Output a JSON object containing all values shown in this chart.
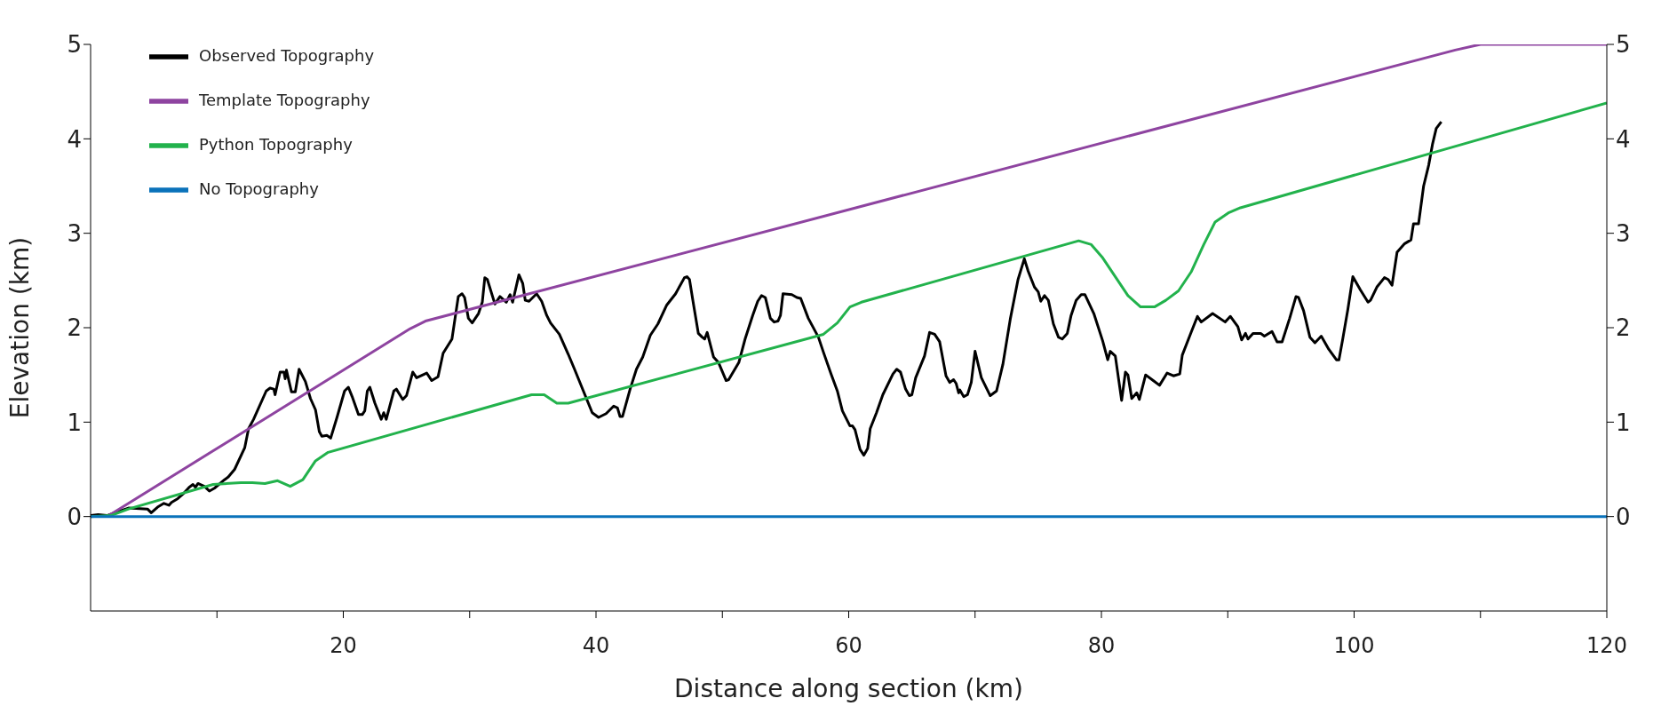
{
  "chart_data": {
    "type": "line",
    "xlabel": "Distance along section (km)",
    "ylabel": "Elevation (km)",
    "xlim": [
      0,
      120
    ],
    "xticks": [
      {
        "value": 10,
        "label": null
      },
      20,
      {
        "value": 30,
        "label": null
      },
      40,
      {
        "value": 50,
        "label": null
      },
      60,
      {
        "value": 70,
        "label": null
      },
      80,
      {
        "value": 90,
        "label": null
      },
      100,
      {
        "value": 110,
        "label": null
      },
      120
    ],
    "ylim": [
      -1,
      5
    ],
    "yticks": [
      0,
      1,
      2,
      3,
      4,
      5
    ],
    "y2lim": [
      -1,
      5
    ],
    "y2ticks": [
      0,
      1,
      2,
      3,
      4,
      5
    ],
    "legend": "top left",
    "series": [
      {
        "name": "Observed Topography",
        "color": "#000000",
        "x": [
          0,
          0.6,
          1.3,
          1.9,
          3.0,
          4.5,
          4.8,
          5.3,
          5.8,
          6.2,
          6.4,
          6.9,
          7.4,
          7.8,
          8.1,
          8.3,
          8.5,
          9.0,
          9.4,
          9.8,
          10.6,
          10.9,
          11.4,
          12.2,
          12.5,
          12.9,
          13.9,
          14.2,
          14.5,
          14.6,
          15.0,
          15.3,
          15.4,
          15.5,
          15.9,
          16.2,
          16.5,
          17.0,
          17.4,
          17.8,
          18.1,
          18.3,
          18.7,
          19.0,
          19.5,
          20.1,
          20.4,
          20.7,
          21.2,
          21.5,
          21.7,
          21.9,
          22.1,
          22.5,
          23.0,
          23.2,
          23.4,
          24.0,
          24.2,
          24.7,
          25.0,
          25.5,
          25.8,
          26.6,
          27.0,
          27.5,
          27.9,
          28.6,
          29.1,
          29.4,
          29.6,
          29.9,
          30.2,
          30.7,
          31.0,
          31.2,
          31.4,
          32.0,
          32.4,
          32.9,
          33.2,
          33.4,
          33.9,
          34.2,
          34.4,
          34.7,
          35.3,
          35.7,
          36.1,
          36.4,
          37.1,
          37.8,
          38.3,
          39.0,
          39.7,
          40.2,
          40.8,
          41.4,
          41.7,
          41.9,
          42.1,
          42.7,
          43.2,
          43.7,
          44.3,
          44.9,
          45.6,
          46.3,
          47.0,
          47.2,
          47.4,
          47.7,
          48.1,
          48.4,
          48.6,
          48.8,
          49.3,
          49.7,
          50.3,
          50.5,
          51.3,
          51.8,
          52.4,
          52.8,
          53.1,
          53.4,
          53.8,
          54.1,
          54.4,
          54.6,
          54.8,
          55.5,
          55.9,
          56.2,
          56.8,
          57.6,
          58.0,
          58.6,
          59.1,
          59.5,
          60.1,
          60.3,
          60.5,
          60.9,
          61.2,
          61.5,
          61.7,
          62.2,
          62.7,
          63.5,
          63.8,
          64.1,
          64.5,
          64.8,
          65.0,
          65.3,
          66.0,
          66.4,
          66.8,
          67.2,
          67.7,
          68.0,
          68.3,
          68.5,
          68.7,
          68.8,
          69.1,
          69.4,
          69.7,
          70.0,
          70.5,
          71.2,
          71.7,
          72.2,
          72.8,
          73.4,
          73.9,
          74.2,
          74.7,
          75.0,
          75.2,
          75.5,
          75.8,
          76.2,
          76.6,
          76.9,
          77.3,
          77.6,
          78.0,
          78.4,
          78.7,
          79.4,
          80.1,
          80.5,
          80.7,
          81.1,
          81.6,
          81.9,
          82.1,
          82.4,
          82.8,
          83.0,
          83.5,
          84.1,
          84.6,
          85.2,
          85.7,
          86.2,
          86.4,
          87.1,
          87.6,
          87.9,
          88.8,
          89.8,
          90.2,
          90.8,
          91.1,
          91.4,
          91.6,
          92.0,
          92.6,
          92.9,
          93.5,
          93.9,
          94.3,
          94.9,
          95.4,
          95.6,
          96.0,
          96.5,
          96.9,
          97.4,
          98.0,
          98.6,
          98.8,
          99.1,
          99.5,
          99.9,
          100.5,
          101.1,
          101.3,
          101.8,
          102.4,
          102.7,
          103.0,
          103.4,
          104.0,
          104.5,
          104.7,
          105.1,
          105.5,
          105.9,
          106.2,
          106.5,
          106.9
        ],
        "values": [
          0.01,
          0.02,
          0.01,
          0.04,
          0.09,
          0.08,
          0.04,
          0.1,
          0.14,
          0.12,
          0.15,
          0.19,
          0.25,
          0.31,
          0.34,
          0.31,
          0.35,
          0.32,
          0.27,
          0.3,
          0.39,
          0.42,
          0.5,
          0.73,
          0.93,
          1.03,
          1.33,
          1.36,
          1.35,
          1.29,
          1.53,
          1.53,
          1.46,
          1.55,
          1.32,
          1.32,
          1.56,
          1.43,
          1.25,
          1.13,
          0.9,
          0.85,
          0.86,
          0.83,
          1.05,
          1.33,
          1.37,
          1.27,
          1.08,
          1.08,
          1.12,
          1.33,
          1.37,
          1.2,
          1.03,
          1.1,
          1.03,
          1.33,
          1.35,
          1.24,
          1.28,
          1.53,
          1.47,
          1.52,
          1.44,
          1.48,
          1.73,
          1.88,
          2.33,
          2.36,
          2.32,
          2.1,
          2.05,
          2.15,
          2.27,
          2.53,
          2.51,
          2.25,
          2.33,
          2.27,
          2.35,
          2.27,
          2.56,
          2.47,
          2.29,
          2.28,
          2.36,
          2.28,
          2.13,
          2.05,
          1.93,
          1.72,
          1.56,
          1.33,
          1.1,
          1.05,
          1.09,
          1.17,
          1.15,
          1.06,
          1.06,
          1.35,
          1.56,
          1.69,
          1.92,
          2.04,
          2.24,
          2.36,
          2.53,
          2.54,
          2.51,
          2.26,
          1.94,
          1.9,
          1.88,
          1.95,
          1.69,
          1.63,
          1.44,
          1.45,
          1.63,
          1.88,
          2.13,
          2.28,
          2.34,
          2.32,
          2.1,
          2.06,
          2.07,
          2.13,
          2.36,
          2.35,
          2.32,
          2.31,
          2.1,
          1.9,
          1.74,
          1.51,
          1.33,
          1.12,
          0.96,
          0.96,
          0.92,
          0.71,
          0.65,
          0.72,
          0.93,
          1.1,
          1.29,
          1.51,
          1.56,
          1.53,
          1.35,
          1.28,
          1.29,
          1.47,
          1.7,
          1.95,
          1.93,
          1.85,
          1.49,
          1.42,
          1.45,
          1.41,
          1.31,
          1.34,
          1.27,
          1.29,
          1.42,
          1.75,
          1.47,
          1.28,
          1.33,
          1.61,
          2.1,
          2.51,
          2.73,
          2.6,
          2.43,
          2.38,
          2.28,
          2.34,
          2.29,
          2.04,
          1.9,
          1.88,
          1.94,
          2.13,
          2.29,
          2.35,
          2.35,
          2.15,
          1.86,
          1.66,
          1.75,
          1.7,
          1.23,
          1.53,
          1.5,
          1.25,
          1.31,
          1.24,
          1.5,
          1.44,
          1.39,
          1.52,
          1.49,
          1.51,
          1.71,
          1.95,
          2.12,
          2.06,
          2.15,
          2.06,
          2.12,
          2.01,
          1.87,
          1.94,
          1.88,
          1.94,
          1.94,
          1.91,
          1.96,
          1.85,
          1.85,
          2.1,
          2.33,
          2.32,
          2.18,
          1.9,
          1.84,
          1.91,
          1.77,
          1.66,
          1.66,
          1.88,
          2.19,
          2.54,
          2.4,
          2.27,
          2.29,
          2.43,
          2.53,
          2.51,
          2.45,
          2.8,
          2.89,
          2.93,
          3.1,
          3.1,
          3.5,
          3.72,
          3.94,
          4.11,
          4.18
        ]
      },
      {
        "name": "Template Topography",
        "color": "#8e44a0",
        "x": [
          1.3,
          25.3,
          26.5,
          108,
          110,
          120
        ],
        "values": [
          0,
          1.99,
          2.07,
          4.94,
          5.0,
          5.0
        ]
      },
      {
        "name": "Python Topography",
        "color": "#22b24c",
        "x": [
          0,
          1.6,
          3.0,
          9.7,
          11.9,
          12.8,
          13.8,
          14.8,
          15.8,
          16.8,
          17.8,
          18.8,
          34.9,
          35.9,
          36.9,
          37.8,
          58.0,
          59.1,
          60.1,
          61.0,
          78.2,
          79.2,
          80.1,
          81.1,
          82.1,
          83.1,
          84.2,
          85.1,
          86.1,
          87.1,
          88.1,
          89.0,
          90.1,
          91.0,
          120
        ],
        "values": [
          0,
          0.01,
          0.08,
          0.34,
          0.36,
          0.36,
          0.35,
          0.38,
          0.32,
          0.39,
          0.59,
          0.68,
          1.29,
          1.29,
          1.2,
          1.2,
          1.93,
          2.05,
          2.22,
          2.27,
          2.92,
          2.88,
          2.74,
          2.54,
          2.34,
          2.22,
          2.22,
          2.29,
          2.39,
          2.59,
          2.88,
          3.12,
          3.22,
          3.27,
          4.38
        ]
      },
      {
        "name": "No Topography",
        "color": "#0a72ba",
        "x": [
          0,
          120
        ],
        "values": [
          0,
          0
        ]
      }
    ]
  }
}
